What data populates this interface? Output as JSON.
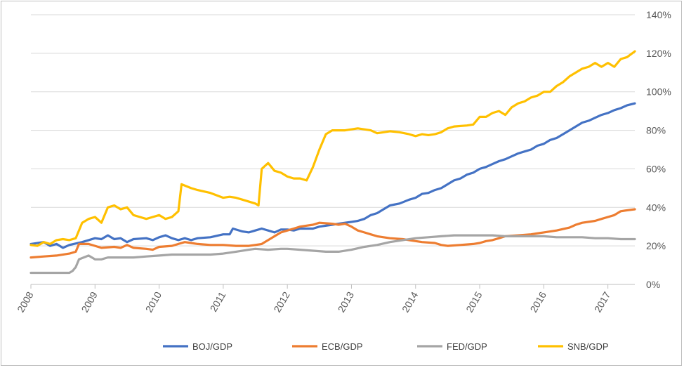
{
  "chart_data": {
    "type": "line",
    "title": "",
    "xlabel": "",
    "ylabel": "",
    "x_ticks": [
      "2008",
      "2009",
      "2010",
      "2011",
      "2012",
      "2013",
      "2014",
      "2015",
      "2016",
      "2017"
    ],
    "xlim": [
      2008,
      2017.42
    ],
    "ylim": [
      0,
      140
    ],
    "y_ticks": [
      "0%",
      "20%",
      "40%",
      "60%",
      "80%",
      "100%",
      "120%",
      "140%"
    ],
    "y_axis_position": "right",
    "grid": "horizontal",
    "legend_position": "bottom",
    "series": [
      {
        "name": "BOJ/GDP",
        "color": "#4472c4",
        "points": [
          [
            2008,
            21
          ],
          [
            2008.2,
            22
          ],
          [
            2008.3,
            20
          ],
          [
            2008.4,
            21
          ],
          [
            2008.5,
            19
          ],
          [
            2008.6,
            20.5
          ],
          [
            2008.8,
            22
          ],
          [
            2009,
            24
          ],
          [
            2009.1,
            23.5
          ],
          [
            2009.2,
            25.5
          ],
          [
            2009.3,
            23.5
          ],
          [
            2009.4,
            24
          ],
          [
            2009.5,
            22
          ],
          [
            2009.6,
            23.5
          ],
          [
            2009.8,
            24
          ],
          [
            2009.9,
            23
          ],
          [
            2010,
            24.5
          ],
          [
            2010.1,
            25.5
          ],
          [
            2010.2,
            24
          ],
          [
            2010.3,
            23
          ],
          [
            2010.4,
            24
          ],
          [
            2010.5,
            23
          ],
          [
            2010.6,
            24
          ],
          [
            2010.8,
            24.5
          ],
          [
            2011,
            26
          ],
          [
            2011.1,
            26
          ],
          [
            2011.15,
            29
          ],
          [
            2011.3,
            27.5
          ],
          [
            2011.4,
            27
          ],
          [
            2011.5,
            28
          ],
          [
            2011.6,
            29
          ],
          [
            2011.7,
            28
          ],
          [
            2011.8,
            27
          ],
          [
            2011.9,
            28.5
          ],
          [
            2012,
            28.5
          ],
          [
            2012.1,
            28
          ],
          [
            2012.2,
            29
          ],
          [
            2012.4,
            29
          ],
          [
            2012.5,
            30
          ],
          [
            2012.7,
            31
          ],
          [
            2012.9,
            32
          ],
          [
            2013,
            32.5
          ],
          [
            2013.1,
            33
          ],
          [
            2013.2,
            34
          ],
          [
            2013.3,
            36
          ],
          [
            2013.4,
            37
          ],
          [
            2013.5,
            39
          ],
          [
            2013.6,
            41
          ],
          [
            2013.75,
            42
          ],
          [
            2013.9,
            44
          ],
          [
            2014,
            45
          ],
          [
            2014.1,
            47
          ],
          [
            2014.2,
            47.5
          ],
          [
            2014.3,
            49
          ],
          [
            2014.4,
            50
          ],
          [
            2014.5,
            52
          ],
          [
            2014.6,
            54
          ],
          [
            2014.7,
            55
          ],
          [
            2014.8,
            57
          ],
          [
            2014.9,
            58
          ],
          [
            2015,
            60
          ],
          [
            2015.1,
            61
          ],
          [
            2015.2,
            62.5
          ],
          [
            2015.3,
            64
          ],
          [
            2015.4,
            65
          ],
          [
            2015.5,
            66.5
          ],
          [
            2015.6,
            68
          ],
          [
            2015.7,
            69
          ],
          [
            2015.8,
            70
          ],
          [
            2015.9,
            72
          ],
          [
            2016,
            73
          ],
          [
            2016.1,
            75
          ],
          [
            2016.2,
            76
          ],
          [
            2016.3,
            78
          ],
          [
            2016.4,
            80
          ],
          [
            2016.5,
            82
          ],
          [
            2016.6,
            84
          ],
          [
            2016.7,
            85
          ],
          [
            2016.8,
            86.5
          ],
          [
            2016.9,
            88
          ],
          [
            2017,
            89
          ],
          [
            2017.1,
            90.5
          ],
          [
            2017.2,
            91.5
          ],
          [
            2017.3,
            93
          ],
          [
            2017.42,
            94
          ]
        ]
      },
      {
        "name": "ECB/GDP",
        "color": "#ed7d31",
        "points": [
          [
            2008,
            14
          ],
          [
            2008.2,
            14.5
          ],
          [
            2008.4,
            15
          ],
          [
            2008.6,
            16
          ],
          [
            2008.7,
            17
          ],
          [
            2008.75,
            21
          ],
          [
            2008.9,
            21
          ],
          [
            2009,
            20
          ],
          [
            2009.1,
            19
          ],
          [
            2009.3,
            19.5
          ],
          [
            2009.4,
            19
          ],
          [
            2009.5,
            20.5
          ],
          [
            2009.6,
            19
          ],
          [
            2009.8,
            18.5
          ],
          [
            2009.9,
            18
          ],
          [
            2010,
            19.5
          ],
          [
            2010.2,
            20
          ],
          [
            2010.3,
            21
          ],
          [
            2010.4,
            22
          ],
          [
            2010.5,
            21.5
          ],
          [
            2010.6,
            21
          ],
          [
            2010.8,
            20.5
          ],
          [
            2011,
            20.5
          ],
          [
            2011.2,
            20
          ],
          [
            2011.4,
            20
          ],
          [
            2011.5,
            20.5
          ],
          [
            2011.6,
            21
          ],
          [
            2011.7,
            23
          ],
          [
            2011.8,
            25
          ],
          [
            2011.9,
            27
          ],
          [
            2012,
            28
          ],
          [
            2012.1,
            29
          ],
          [
            2012.2,
            30
          ],
          [
            2012.3,
            30.5
          ],
          [
            2012.4,
            31
          ],
          [
            2012.5,
            32
          ],
          [
            2012.7,
            31.5
          ],
          [
            2012.8,
            31
          ],
          [
            2012.9,
            31.5
          ],
          [
            2013,
            30
          ],
          [
            2013.1,
            28
          ],
          [
            2013.2,
            27
          ],
          [
            2013.3,
            26
          ],
          [
            2013.4,
            25
          ],
          [
            2013.5,
            24.5
          ],
          [
            2013.6,
            24
          ],
          [
            2013.8,
            23.5
          ],
          [
            2014,
            22.5
          ],
          [
            2014.1,
            22
          ],
          [
            2014.3,
            21.5
          ],
          [
            2014.4,
            20.5
          ],
          [
            2014.5,
            20
          ],
          [
            2014.7,
            20.5
          ],
          [
            2014.9,
            21
          ],
          [
            2015,
            21.5
          ],
          [
            2015.1,
            22.5
          ],
          [
            2015.2,
            23
          ],
          [
            2015.3,
            24
          ],
          [
            2015.4,
            25
          ],
          [
            2015.6,
            25.5
          ],
          [
            2015.8,
            26
          ],
          [
            2016,
            27
          ],
          [
            2016.2,
            28
          ],
          [
            2016.4,
            29.5
          ],
          [
            2016.5,
            31
          ],
          [
            2016.6,
            32
          ],
          [
            2016.8,
            33
          ],
          [
            2016.9,
            34
          ],
          [
            2017,
            35
          ],
          [
            2017.1,
            36
          ],
          [
            2017.2,
            38
          ],
          [
            2017.3,
            38.5
          ],
          [
            2017.42,
            39
          ]
        ]
      },
      {
        "name": "FED/GDP",
        "color": "#a5a5a5",
        "points": [
          [
            2008,
            6
          ],
          [
            2008.2,
            6
          ],
          [
            2008.4,
            6
          ],
          [
            2008.6,
            6
          ],
          [
            2008.65,
            7
          ],
          [
            2008.7,
            9
          ],
          [
            2008.75,
            13
          ],
          [
            2008.9,
            15
          ],
          [
            2009,
            13
          ],
          [
            2009.1,
            13
          ],
          [
            2009.2,
            14
          ],
          [
            2009.4,
            14
          ],
          [
            2009.6,
            14
          ],
          [
            2009.8,
            14.5
          ],
          [
            2010,
            15
          ],
          [
            2010.2,
            15.5
          ],
          [
            2010.4,
            15.5
          ],
          [
            2010.6,
            15.5
          ],
          [
            2010.8,
            15.5
          ],
          [
            2011,
            16
          ],
          [
            2011.2,
            17
          ],
          [
            2011.4,
            18
          ],
          [
            2011.5,
            18.5
          ],
          [
            2011.7,
            18
          ],
          [
            2011.9,
            18.5
          ],
          [
            2012,
            18.5
          ],
          [
            2012.2,
            18
          ],
          [
            2012.4,
            17.5
          ],
          [
            2012.6,
            17
          ],
          [
            2012.8,
            17
          ],
          [
            2013,
            18
          ],
          [
            2013.2,
            19.5
          ],
          [
            2013.4,
            20.5
          ],
          [
            2013.6,
            22
          ],
          [
            2013.8,
            23
          ],
          [
            2014,
            24
          ],
          [
            2014.2,
            24.5
          ],
          [
            2014.4,
            25
          ],
          [
            2014.6,
            25.5
          ],
          [
            2014.8,
            25.5
          ],
          [
            2015,
            25.5
          ],
          [
            2015.2,
            25.5
          ],
          [
            2015.4,
            25
          ],
          [
            2015.6,
            25
          ],
          [
            2015.8,
            25
          ],
          [
            2016,
            25
          ],
          [
            2016.2,
            24.5
          ],
          [
            2016.4,
            24.5
          ],
          [
            2016.6,
            24.5
          ],
          [
            2016.8,
            24
          ],
          [
            2017,
            24
          ],
          [
            2017.2,
            23.5
          ],
          [
            2017.42,
            23.5
          ]
        ]
      },
      {
        "name": "SNB/GDP",
        "color": "#ffc000",
        "points": [
          [
            2008,
            20.5
          ],
          [
            2008.1,
            20
          ],
          [
            2008.2,
            22
          ],
          [
            2008.3,
            21
          ],
          [
            2008.4,
            23
          ],
          [
            2008.5,
            23.5
          ],
          [
            2008.6,
            23
          ],
          [
            2008.7,
            24
          ],
          [
            2008.8,
            32
          ],
          [
            2008.9,
            34
          ],
          [
            2009,
            35
          ],
          [
            2009.1,
            32
          ],
          [
            2009.2,
            40
          ],
          [
            2009.3,
            41
          ],
          [
            2009.4,
            39
          ],
          [
            2009.5,
            40
          ],
          [
            2009.6,
            36
          ],
          [
            2009.7,
            35
          ],
          [
            2009.8,
            34
          ],
          [
            2009.9,
            35
          ],
          [
            2010,
            36
          ],
          [
            2010.1,
            34
          ],
          [
            2010.2,
            35
          ],
          [
            2010.3,
            38
          ],
          [
            2010.35,
            52
          ],
          [
            2010.5,
            50
          ],
          [
            2010.6,
            49
          ],
          [
            2010.8,
            47.5
          ],
          [
            2011,
            45
          ],
          [
            2011.1,
            45.5
          ],
          [
            2011.2,
            45
          ],
          [
            2011.3,
            44
          ],
          [
            2011.5,
            42
          ],
          [
            2011.55,
            41
          ],
          [
            2011.6,
            60
          ],
          [
            2011.7,
            63
          ],
          [
            2011.8,
            59
          ],
          [
            2011.9,
            58
          ],
          [
            2012,
            56
          ],
          [
            2012.1,
            55
          ],
          [
            2012.2,
            55
          ],
          [
            2012.3,
            54
          ],
          [
            2012.4,
            61
          ],
          [
            2012.5,
            70
          ],
          [
            2012.6,
            78
          ],
          [
            2012.7,
            80
          ],
          [
            2012.9,
            80
          ],
          [
            2013,
            80.5
          ],
          [
            2013.1,
            81
          ],
          [
            2013.2,
            80.5
          ],
          [
            2013.3,
            80
          ],
          [
            2013.4,
            78.5
          ],
          [
            2013.5,
            79
          ],
          [
            2013.6,
            79.5
          ],
          [
            2013.75,
            79
          ],
          [
            2013.9,
            78
          ],
          [
            2014,
            77
          ],
          [
            2014.1,
            78
          ],
          [
            2014.2,
            77.5
          ],
          [
            2014.3,
            78
          ],
          [
            2014.4,
            79
          ],
          [
            2014.5,
            81
          ],
          [
            2014.6,
            82
          ],
          [
            2014.8,
            82.5
          ],
          [
            2014.9,
            83
          ],
          [
            2015,
            87
          ],
          [
            2015.1,
            87
          ],
          [
            2015.2,
            89
          ],
          [
            2015.3,
            90
          ],
          [
            2015.4,
            88
          ],
          [
            2015.5,
            92
          ],
          [
            2015.6,
            94
          ],
          [
            2015.7,
            95
          ],
          [
            2015.8,
            97
          ],
          [
            2015.9,
            98
          ],
          [
            2016,
            100
          ],
          [
            2016.1,
            100
          ],
          [
            2016.2,
            103
          ],
          [
            2016.3,
            105
          ],
          [
            2016.4,
            108
          ],
          [
            2016.5,
            110
          ],
          [
            2016.6,
            112
          ],
          [
            2016.7,
            113
          ],
          [
            2016.8,
            115
          ],
          [
            2016.9,
            113
          ],
          [
            2017,
            115
          ],
          [
            2017.1,
            113
          ],
          [
            2017.2,
            117
          ],
          [
            2017.3,
            118
          ],
          [
            2017.42,
            121
          ]
        ]
      }
    ]
  }
}
